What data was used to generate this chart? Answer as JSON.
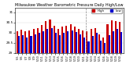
{
  "title": "Milwaukee Weather Barometric Pressure Daily High/Low",
  "title_fontsize": 3.5,
  "bar_width": 0.4,
  "background_color": "#ffffff",
  "high_color": "#cc0000",
  "low_color": "#0000cc",
  "ylabel_fontsize": 3.0,
  "xlabel_fontsize": 2.5,
  "ylim": [
    29.0,
    31.2
  ],
  "yticks": [
    29.0,
    29.5,
    30.0,
    30.5,
    31.0
  ],
  "ytick_labels": [
    "29",
    "29.5",
    "30",
    "30.5",
    "31"
  ],
  "labels": [
    "5/5",
    "5/6",
    "5/7",
    "5/8",
    "5/9",
    "5/10",
    "5/11",
    "5/12",
    "5/13",
    "5/14",
    "5/15",
    "5/16",
    "5/17",
    "5/18",
    "5/19",
    "5/20",
    "5/21",
    "5/22",
    "5/23",
    "5/24",
    "5/25",
    "5/26",
    "5/27",
    "5/28",
    "5/29",
    "5/30"
  ],
  "highs": [
    30.08,
    30.15,
    30.05,
    30.12,
    30.18,
    30.22,
    30.38,
    30.55,
    30.65,
    30.32,
    30.18,
    30.28,
    30.32,
    30.42,
    30.28,
    30.18,
    30.12,
    30.08,
    30.18,
    30.22,
    29.92,
    29.78,
    30.42,
    30.62,
    30.58,
    30.52
  ],
  "lows": [
    29.82,
    29.88,
    29.78,
    29.82,
    29.92,
    29.98,
    30.08,
    30.18,
    30.22,
    29.98,
    29.88,
    29.98,
    30.08,
    30.12,
    30.02,
    29.92,
    29.78,
    29.58,
    29.82,
    29.98,
    29.62,
    29.48,
    29.88,
    30.08,
    30.18,
    30.02
  ],
  "vline_pos": 16.5,
  "legend_high": "High",
  "legend_low": "Low",
  "ymin": 29.0
}
